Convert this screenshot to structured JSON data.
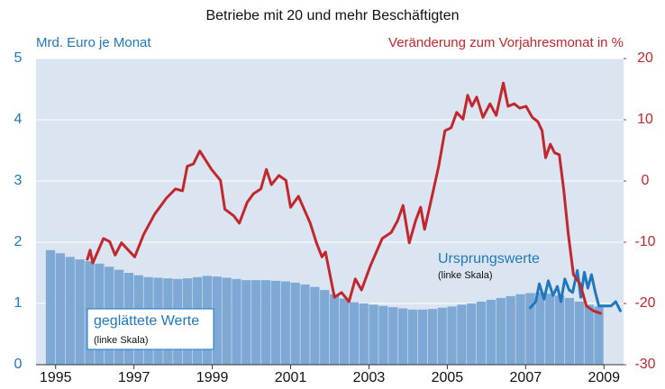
{
  "chart_data": {
    "type": "bar",
    "title": "Betriebe mit 20 und mehr Beschäftigten",
    "ylabel": "Mrd. Euro je Monat",
    "y2label": "Veränderung zum Vorjahresmonat in %",
    "xlim": [
      1995.0,
      2010.0
    ],
    "xticks": [
      {
        "value": 1995.5,
        "label": "1995"
      },
      {
        "value": 1997.5,
        "label": "1997"
      },
      {
        "value": 1999.5,
        "label": "1999"
      },
      {
        "value": 2001.5,
        "label": "2001"
      },
      {
        "value": 2003.5,
        "label": "2003"
      },
      {
        "value": 2005.5,
        "label": "2005"
      },
      {
        "value": 2007.5,
        "label": "2007"
      },
      {
        "value": 2009.5,
        "label": "2009"
      }
    ],
    "ylim": [
      0,
      5
    ],
    "yticks": [
      0,
      1,
      2,
      3,
      4,
      5
    ],
    "y2lim": [
      -30,
      20
    ],
    "y2ticks": [
      -30,
      -20,
      -10,
      0,
      10,
      20
    ],
    "grid": true,
    "series": [
      {
        "name": "geglättete Werte",
        "note": "(linke Skala)",
        "type": "bar",
        "color": "#7ea9d5",
        "x": [
          1995.25,
          1995.5,
          1995.75,
          1996.0,
          1996.25,
          1996.5,
          1996.75,
          1997.0,
          1997.25,
          1997.5,
          1997.75,
          1998.0,
          1998.25,
          1998.5,
          1998.75,
          1999.0,
          1999.25,
          1999.5,
          1999.75,
          2000.0,
          2000.25,
          2000.5,
          2000.75,
          2001.0,
          2001.25,
          2001.5,
          2001.75,
          2002.0,
          2002.25,
          2002.5,
          2002.75,
          2003.0,
          2003.25,
          2003.5,
          2003.75,
          2004.0,
          2004.25,
          2004.5,
          2004.75,
          2005.0,
          2005.25,
          2005.5,
          2005.75,
          2006.0,
          2006.25,
          2006.5,
          2006.75,
          2007.0,
          2007.25,
          2007.5,
          2007.75,
          2008.0,
          2008.25,
          2008.5,
          2008.75,
          2009.0,
          2009.25
        ],
        "values": [
          1.87,
          1.82,
          1.76,
          1.72,
          1.69,
          1.65,
          1.6,
          1.55,
          1.5,
          1.46,
          1.43,
          1.42,
          1.41,
          1.4,
          1.41,
          1.43,
          1.45,
          1.44,
          1.42,
          1.4,
          1.38,
          1.38,
          1.38,
          1.37,
          1.36,
          1.34,
          1.31,
          1.27,
          1.22,
          1.15,
          1.08,
          1.02,
          1.0,
          0.98,
          0.96,
          0.94,
          0.92,
          0.9,
          0.9,
          0.91,
          0.93,
          0.95,
          0.98,
          1.0,
          1.03,
          1.06,
          1.09,
          1.12,
          1.15,
          1.17,
          1.18,
          1.16,
          1.13,
          1.09,
          1.03,
          0.98,
          0.95
        ]
      },
      {
        "name": "Ursprungswerte",
        "note": "(linke Skala)",
        "type": "line",
        "color": "#1f77bd",
        "x": [
          2007.62,
          2007.76,
          2007.85,
          2007.97,
          2008.08,
          2008.2,
          2008.31,
          2008.4,
          2008.5,
          2008.61,
          2008.7,
          2008.82,
          2008.91,
          2009.0,
          2009.09,
          2009.18,
          2009.28,
          2009.37,
          2009.5,
          2009.68,
          2009.8,
          2009.92
        ],
        "values": [
          0.93,
          1.03,
          1.32,
          1.07,
          1.37,
          1.13,
          1.28,
          1.03,
          1.4,
          1.22,
          1.18,
          1.54,
          1.1,
          1.51,
          1.25,
          1.47,
          1.18,
          0.96,
          0.96,
          0.96,
          1.03,
          0.88
        ]
      },
      {
        "type": "line",
        "axis": "y2",
        "color": "#c1272d",
        "x": [
          1996.31,
          1996.38,
          1996.45,
          1996.72,
          1996.88,
          1997.02,
          1997.18,
          1997.52,
          1997.75,
          1998.03,
          1998.33,
          1998.56,
          1998.74,
          1998.86,
          1999.02,
          1999.18,
          1999.48,
          1999.71,
          1999.82,
          2000.05,
          2000.19,
          2000.39,
          2000.55,
          2000.74,
          2000.88,
          2001.01,
          2001.2,
          2001.38,
          2001.5,
          2001.7,
          2002.0,
          2002.16,
          2002.3,
          2002.39,
          2002.62,
          2002.8,
          2002.99,
          2003.15,
          2003.31,
          2003.54,
          2003.84,
          2004.07,
          2004.23,
          2004.37,
          2004.53,
          2004.69,
          2004.82,
          2004.92,
          2005.1,
          2005.28,
          2005.44,
          2005.6,
          2005.74,
          2005.9,
          2006.02,
          2006.13,
          2006.25,
          2006.41,
          2006.59,
          2006.75,
          2006.93,
          2007.05,
          2007.21,
          2007.35,
          2007.51,
          2007.67,
          2007.81,
          2007.92,
          2008.01,
          2008.13,
          2008.24,
          2008.36,
          2008.47,
          2008.59,
          2008.72,
          2008.89,
          2009.05,
          2009.23,
          2009.41
        ],
        "values": [
          -12.8,
          -11.3,
          -13.4,
          -9.4,
          -9.9,
          -12.1,
          -10.1,
          -12.4,
          -8.7,
          -5.4,
          -2.8,
          -1.3,
          -1.6,
          2.4,
          2.8,
          4.9,
          1.9,
          0.1,
          -4.6,
          -5.7,
          -6.9,
          -3.5,
          -2.1,
          -1.3,
          1.9,
          -0.6,
          0.9,
          0.1,
          -4.3,
          -2.5,
          -6.9,
          -10.1,
          -12.4,
          -11.6,
          -19,
          -18.2,
          -19.7,
          -16,
          -17.8,
          -13.8,
          -9.4,
          -8.4,
          -6.5,
          -4,
          -10.1,
          -6.5,
          -4.3,
          -7.9,
          -2.8,
          2.4,
          8.2,
          8.7,
          11.2,
          10.1,
          14,
          12.2,
          13.7,
          10.4,
          12.6,
          10.7,
          16,
          12.2,
          12.6,
          11.9,
          12.2,
          10.4,
          9.7,
          8.2,
          3.8,
          6,
          4.6,
          4.3,
          -1.3,
          -8.7,
          -15.3,
          -16.8,
          -20.4,
          -21.2,
          -21.6
        ]
      }
    ]
  }
}
